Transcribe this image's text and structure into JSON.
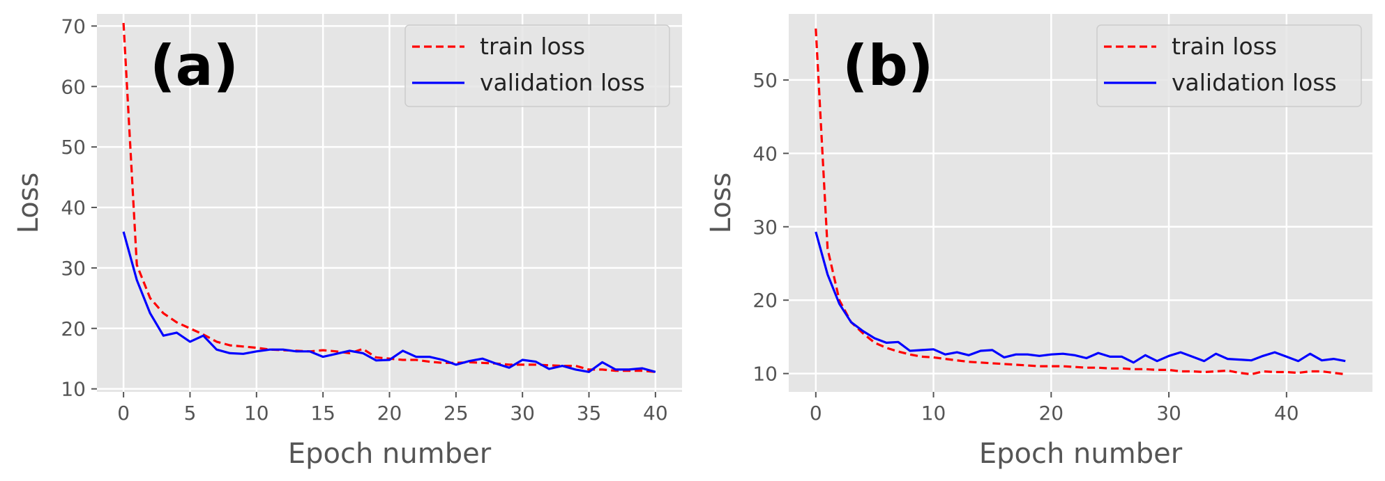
{
  "chart_data": [
    {
      "type": "line",
      "panel_label": "(a)",
      "xlabel": "Epoch number",
      "ylabel": "Loss",
      "xlim": [
        -2,
        42
      ],
      "ylim": [
        9.5,
        72
      ],
      "xticks": [
        0,
        5,
        10,
        15,
        20,
        25,
        30,
        35,
        40
      ],
      "yticks": [
        10,
        20,
        30,
        40,
        50,
        60,
        70
      ],
      "grid": true,
      "legend_position": "top-right",
      "series": [
        {
          "name": "train loss",
          "color": "#ff0000",
          "linestyle": "dashed",
          "x": [
            0,
            1,
            2,
            3,
            4,
            5,
            6,
            7,
            8,
            9,
            10,
            11,
            12,
            13,
            14,
            15,
            16,
            17,
            18,
            19,
            20,
            21,
            22,
            23,
            24,
            25,
            26,
            27,
            28,
            29,
            30,
            31,
            32,
            33,
            34,
            35,
            36,
            37,
            38,
            39,
            40
          ],
          "values": [
            70.5,
            30.5,
            25,
            22.5,
            21,
            20,
            19,
            17.8,
            17.2,
            17,
            16.8,
            16.5,
            16.4,
            16.3,
            16.2,
            16.4,
            16.2,
            15.9,
            16.6,
            15.2,
            15,
            14.8,
            14.8,
            14.5,
            14.3,
            14.3,
            14.4,
            14.3,
            14.2,
            14,
            14,
            14,
            13.9,
            13.8,
            13.8,
            13.2,
            13.2,
            13,
            13,
            13,
            12.8
          ]
        },
        {
          "name": "validation loss",
          "color": "#0000ff",
          "linestyle": "solid",
          "x": [
            0,
            1,
            2,
            3,
            4,
            5,
            6,
            7,
            8,
            9,
            10,
            11,
            12,
            13,
            14,
            15,
            16,
            17,
            18,
            19,
            20,
            21,
            22,
            23,
            24,
            25,
            26,
            27,
            28,
            29,
            30,
            31,
            32,
            33,
            34,
            35,
            36,
            37,
            38,
            39,
            40
          ],
          "values": [
            36,
            28,
            22.5,
            18.8,
            19.3,
            17.8,
            18.8,
            16.5,
            15.9,
            15.8,
            16.2,
            16.5,
            16.5,
            16.2,
            16.2,
            15.3,
            15.8,
            16.3,
            15.9,
            14.7,
            14.8,
            16.3,
            15.3,
            15.3,
            14.8,
            14,
            14.6,
            15,
            14.2,
            13.5,
            14.8,
            14.5,
            13.3,
            13.8,
            13.2,
            12.8,
            14.4,
            13.2,
            13.2,
            13.4,
            12.8
          ]
        }
      ]
    },
    {
      "type": "line",
      "panel_label": "(b)",
      "xlabel": "Epoch number",
      "ylabel": "Loss",
      "xlim": [
        -2.3,
        47.3
      ],
      "ylim": [
        7.5,
        59
      ],
      "xticks": [
        0,
        10,
        20,
        30,
        40
      ],
      "yticks": [
        10,
        20,
        30,
        40,
        50
      ],
      "grid": true,
      "legend_position": "top-right",
      "series": [
        {
          "name": "train loss",
          "color": "#ff0000",
          "linestyle": "dashed",
          "x": [
            0,
            1,
            2,
            3,
            4,
            5,
            6,
            7,
            8,
            9,
            10,
            11,
            12,
            13,
            14,
            15,
            16,
            17,
            18,
            19,
            20,
            21,
            22,
            23,
            24,
            25,
            26,
            27,
            28,
            29,
            30,
            31,
            32,
            33,
            34,
            35,
            36,
            37,
            38,
            39,
            40,
            41,
            42,
            43,
            44,
            45
          ],
          "values": [
            57,
            27,
            20,
            17,
            15.5,
            14.2,
            13.5,
            13,
            12.6,
            12.3,
            12.2,
            12,
            11.8,
            11.6,
            11.5,
            11.4,
            11.3,
            11.2,
            11.1,
            11,
            11,
            11,
            10.9,
            10.8,
            10.8,
            10.7,
            10.7,
            10.6,
            10.6,
            10.5,
            10.5,
            10.3,
            10.3,
            10.2,
            10.3,
            10.4,
            10.1,
            9.9,
            10.3,
            10.2,
            10.2,
            10.1,
            10.3,
            10.3,
            10.1,
            9.9
          ]
        },
        {
          "name": "validation loss",
          "color": "#0000ff",
          "linestyle": "solid",
          "x": [
            0,
            1,
            2,
            3,
            4,
            5,
            6,
            7,
            8,
            9,
            10,
            11,
            12,
            13,
            14,
            15,
            16,
            17,
            18,
            19,
            20,
            21,
            22,
            23,
            24,
            25,
            26,
            27,
            28,
            29,
            30,
            31,
            32,
            33,
            34,
            35,
            36,
            37,
            38,
            39,
            40,
            41,
            42,
            43,
            44,
            45
          ],
          "values": [
            29.3,
            23.5,
            19.5,
            17,
            15.8,
            14.8,
            14.2,
            14.3,
            13.1,
            13.2,
            13.3,
            12.6,
            12.9,
            12.5,
            13.1,
            13.2,
            12.2,
            12.6,
            12.6,
            12.4,
            12.6,
            12.7,
            12.5,
            12.1,
            12.8,
            12.3,
            12.3,
            11.5,
            12.5,
            11.7,
            12.4,
            12.9,
            12.3,
            11.7,
            12.7,
            12,
            11.9,
            11.8,
            12.4,
            12.9,
            12.3,
            11.7,
            12.7,
            11.8,
            12,
            11.7
          ]
        }
      ]
    }
  ]
}
